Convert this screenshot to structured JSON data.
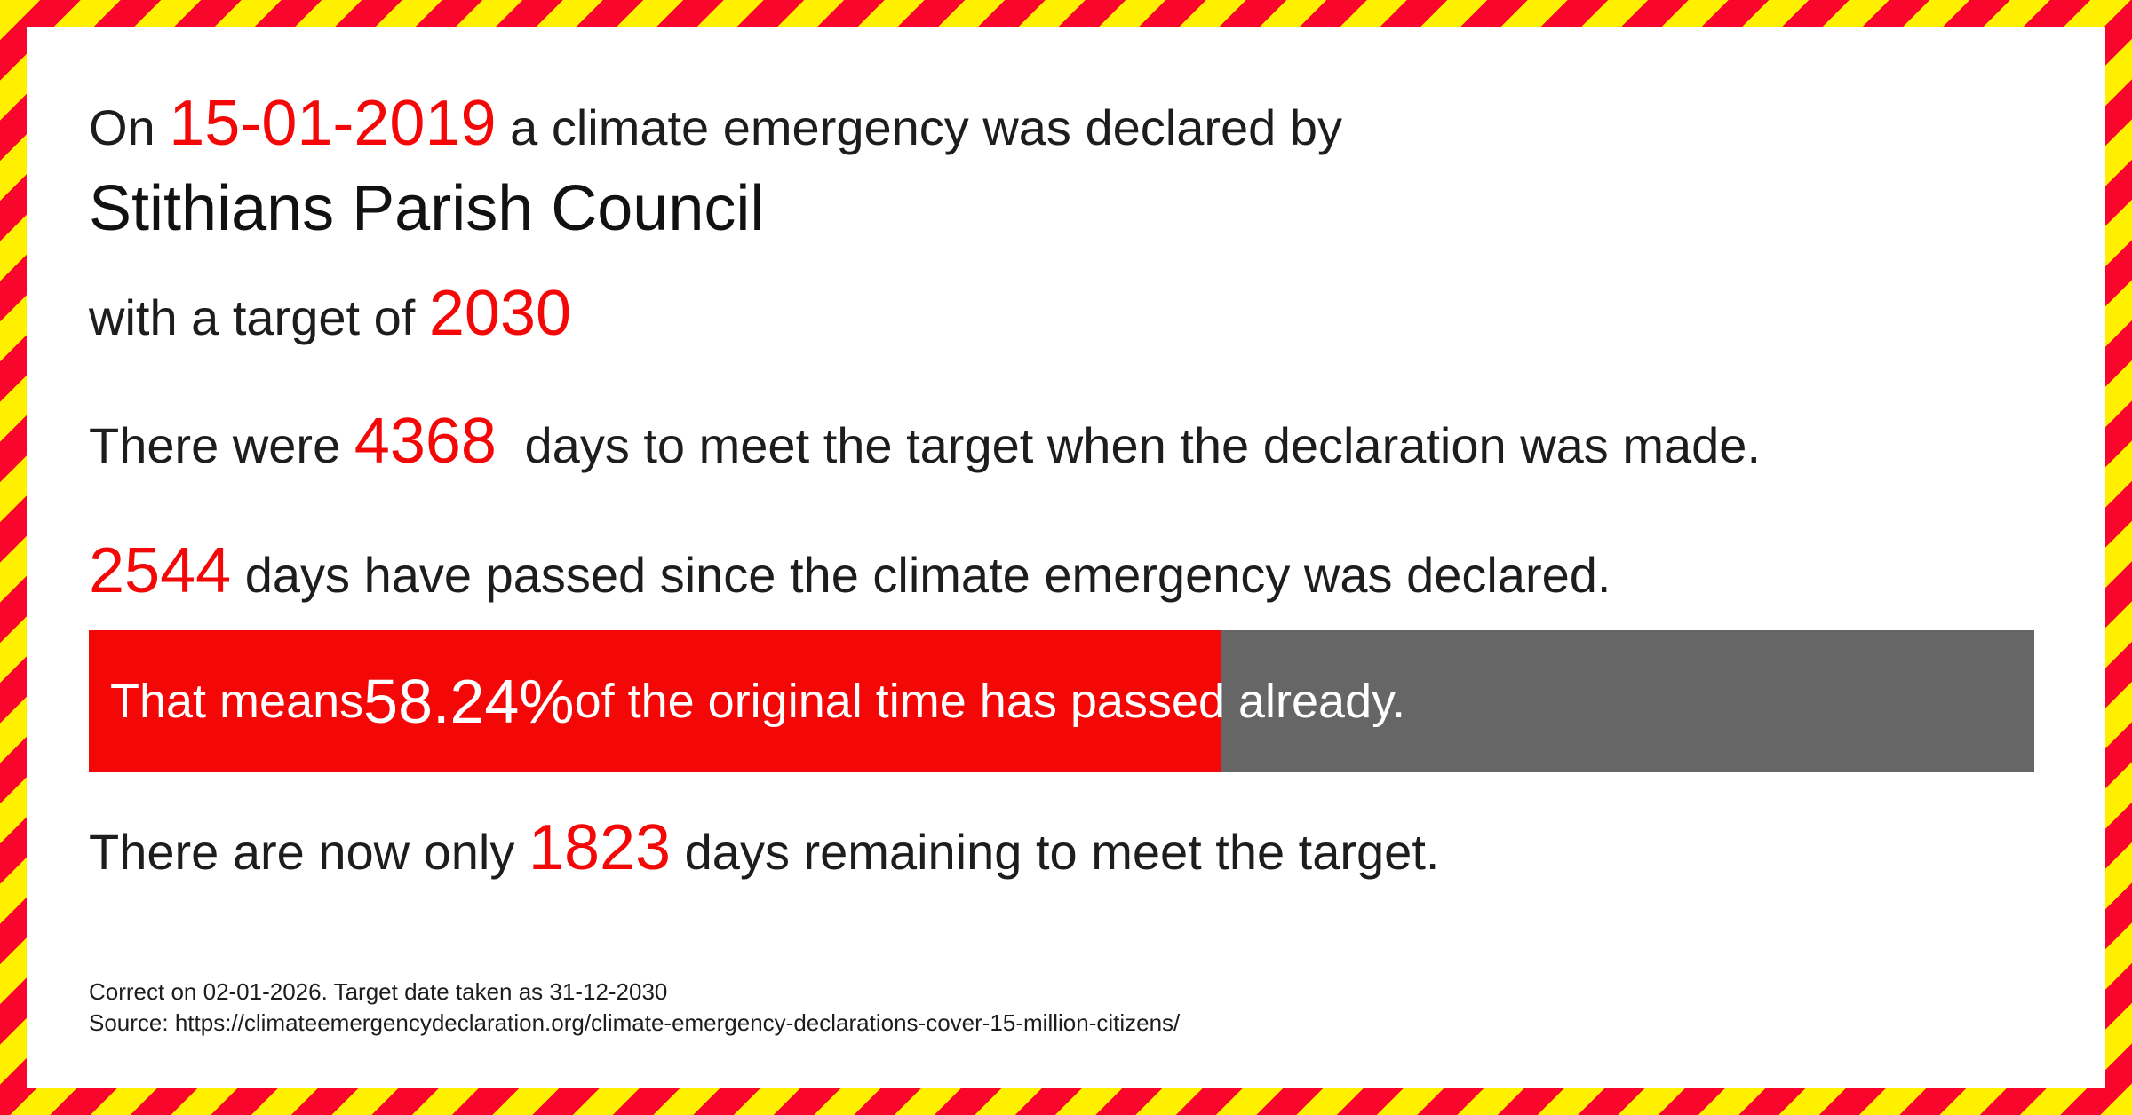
{
  "colors": {
    "stripe_red": "#f9062c",
    "stripe_yellow": "#fff000",
    "accent_red": "#f40707",
    "bar_gray": "#666666",
    "bar_text": "#ffffff",
    "text": "#1d1d1d"
  },
  "declaration": {
    "line1_prefix": "On ",
    "date": "15-01-2019",
    "line1_suffix": " a climate emergency was declared by",
    "council": "Stithians Parish Council",
    "target_prefix": "with a target of ",
    "target_year": "2030",
    "days_total_prefix": "There were ",
    "days_total": "4368",
    "days_total_suffix": " days to meet the target when the declaration was made.",
    "days_passed": "2544",
    "days_passed_suffix": " days have passed since the climate emergency was declared.",
    "days_remaining_prefix": "There are now only ",
    "days_remaining": "1823",
    "days_remaining_suffix": " days remaining to meet the target."
  },
  "progress": {
    "prefix": "That means ",
    "percent": "58.24%",
    "percent_value": 58.24,
    "suffix": " of the original time has passed already."
  },
  "footnote": {
    "line1": "Correct on 02-01-2026. Target date taken as 31-12-2030",
    "line2": "Source: https://climateemergencydeclaration.org/climate-emergency-declarations-cover-15-million-citizens/"
  }
}
